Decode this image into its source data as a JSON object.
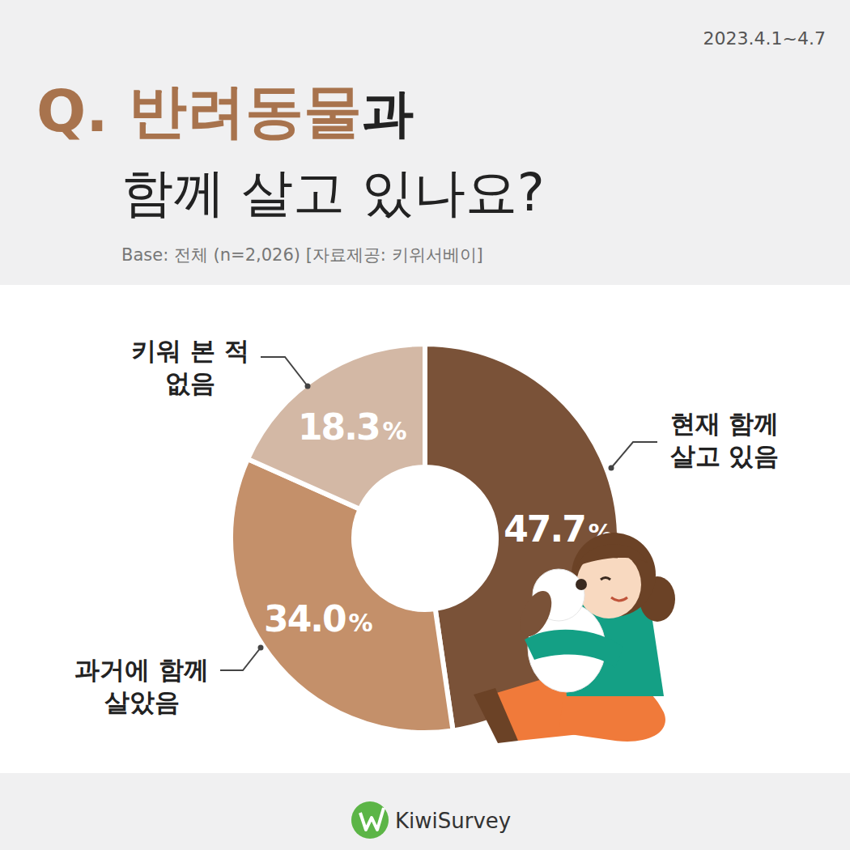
{
  "chart_data": {
    "type": "pie",
    "title": "Q. 반려동물과\n함께 살고 있나요?",
    "title_emphasis": "반려동물",
    "date": "2023.4.1~4.7",
    "subtitle": "Base: 전체 (n=2,026) [자료제공: 키위서베이]",
    "brand": "KiwiSurvey",
    "categories": [
      "현재 함께\n살고 있음",
      "과거에 함께\n살았음",
      "키워 본 적\n없음"
    ],
    "values": [
      47.7,
      34.0,
      18.3
    ],
    "value_labels": [
      "47.7%",
      "34.0%",
      "18.3%"
    ],
    "colors": [
      "#7a5238",
      "#c4906a",
      "#d3b8a5"
    ],
    "data_labels": true
  }
}
